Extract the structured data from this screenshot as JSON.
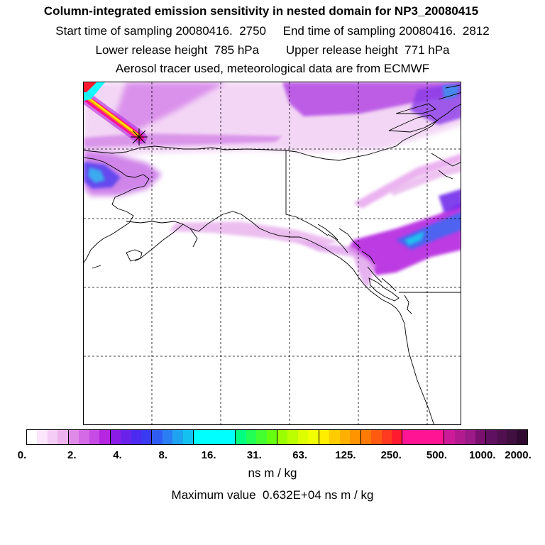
{
  "header": {
    "title": "Column-integrated emission sensitivity in nested domain for NP3_20080415",
    "sampling": "Start time of sampling 20080416.  2750     End time of sampling 20080416.  2812",
    "release": "Lower release height  785 hPa        Upper release height  771 hPa",
    "source": "Aerosol tracer used, meteorological data are from ECMWF"
  },
  "colorbar": {
    "tick_labels": [
      "0.",
      "2.",
      "4.",
      "8.",
      "16.",
      "31.",
      "63.",
      "125.",
      "250.",
      "500.",
      "1000.",
      "2000."
    ],
    "segments": [
      [
        "#ffffff",
        "#fbe6fb",
        "#f5ccf5",
        "#eeb3ee"
      ],
      [
        "#e08ae8",
        "#d46ae6",
        "#c64ae4",
        "#b526e0"
      ],
      [
        "#8a1ce6",
        "#6a22ea",
        "#4c2af0",
        "#3a3af2"
      ],
      [
        "#2f5cf2",
        "#2a7ef2",
        "#1fa2f0",
        "#14c0ef"
      ],
      [
        "#00ffff",
        "#00ffff",
        "#00ffff",
        "#00ffff"
      ],
      [
        "#00ff80",
        "#22ff55",
        "#44ff30",
        "#66ff10"
      ],
      [
        "#99ff00",
        "#bbff00",
        "#ddff00",
        "#f2ff00"
      ],
      [
        "#ffee00",
        "#ffcc00",
        "#ffb000",
        "#ff9400"
      ],
      [
        "#ff7a00",
        "#ff5a10",
        "#ff3a20",
        "#ff1a30"
      ],
      [
        "#ff1493",
        "#ff1493",
        "#ff1493",
        "#ff1493"
      ],
      [
        "#cc1a99",
        "#b41a90",
        "#9c1a88",
        "#7a1070"
      ],
      [
        "#601060",
        "#501050",
        "#401040",
        "#300a30"
      ]
    ],
    "units": "ns m / kg"
  },
  "footer": {
    "max_value": "Maximum value  0.632E+04 ns m / kg"
  },
  "map": {
    "release_marker": "asterisk-marker",
    "plume_color": "#b526e0",
    "light_plume_color": "#eeb3ee"
  }
}
